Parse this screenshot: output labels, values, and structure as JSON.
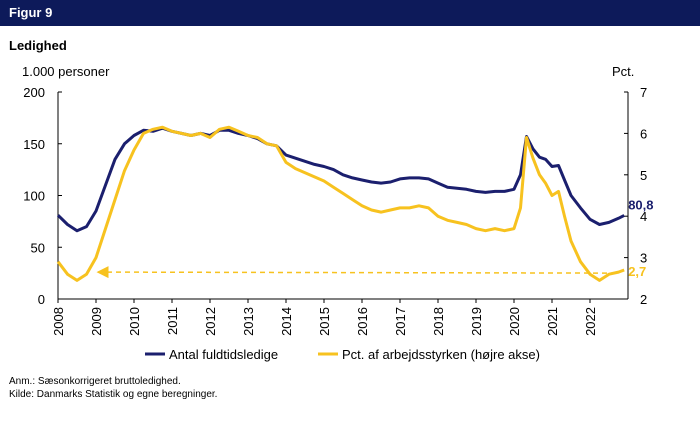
{
  "figure_label": "Figur 9",
  "title": "Ledighed",
  "notes": {
    "anm": "Anm.: Sæsonkorrigeret bruttoledighed.",
    "kilde": "Kilde: Danmarks Statistik og egne beregninger."
  },
  "colors": {
    "navy": "#1b1f6e",
    "yellow": "#f7c21f",
    "banner": "#0d1a5a"
  },
  "chart_data": {
    "type": "line",
    "left_axis": {
      "unit_label": "1.000 personer",
      "ylim": [
        0,
        200
      ],
      "ticks": [
        "0",
        "50",
        "100",
        "150",
        "200"
      ]
    },
    "right_axis": {
      "unit_label": "Pct.",
      "ylim": [
        2,
        7
      ],
      "ticks": [
        "2",
        "3",
        "4",
        "5",
        "6",
        "7"
      ]
    },
    "x_ticks": [
      "2008",
      "2009",
      "2010",
      "2011",
      "2012",
      "2013",
      "2014",
      "2015",
      "2016",
      "2017",
      "2018",
      "2019",
      "2020",
      "2021",
      "2022"
    ],
    "x_range": [
      2008,
      2023
    ],
    "grid": false,
    "legend_position": "bottom",
    "series": [
      {
        "name": "Antal fuldtidsledige",
        "axis": "left",
        "color": "#1b1f6e",
        "end_label": "80,8",
        "points": [
          [
            2008.0,
            81
          ],
          [
            2008.25,
            72
          ],
          [
            2008.5,
            66
          ],
          [
            2008.75,
            70
          ],
          [
            2009.0,
            85
          ],
          [
            2009.25,
            110
          ],
          [
            2009.5,
            135
          ],
          [
            2009.75,
            150
          ],
          [
            2010.0,
            158
          ],
          [
            2010.25,
            163
          ],
          [
            2010.5,
            162
          ],
          [
            2010.75,
            165
          ],
          [
            2011.0,
            162
          ],
          [
            2011.25,
            160
          ],
          [
            2011.5,
            158
          ],
          [
            2011.75,
            160
          ],
          [
            2012.0,
            158
          ],
          [
            2012.25,
            163
          ],
          [
            2012.5,
            163
          ],
          [
            2012.75,
            160
          ],
          [
            2013.0,
            158
          ],
          [
            2013.25,
            155
          ],
          [
            2013.5,
            150
          ],
          [
            2013.75,
            148
          ],
          [
            2014.0,
            139
          ],
          [
            2014.25,
            136
          ],
          [
            2014.5,
            133
          ],
          [
            2014.75,
            130
          ],
          [
            2015.0,
            128
          ],
          [
            2015.25,
            125
          ],
          [
            2015.5,
            120
          ],
          [
            2015.75,
            117
          ],
          [
            2016.0,
            115
          ],
          [
            2016.25,
            113
          ],
          [
            2016.5,
            112
          ],
          [
            2016.75,
            113
          ],
          [
            2017.0,
            116
          ],
          [
            2017.25,
            117
          ],
          [
            2017.5,
            117
          ],
          [
            2017.75,
            116
          ],
          [
            2018.0,
            112
          ],
          [
            2018.25,
            108
          ],
          [
            2018.5,
            107
          ],
          [
            2018.75,
            106
          ],
          [
            2019.0,
            104
          ],
          [
            2019.25,
            103
          ],
          [
            2019.5,
            104
          ],
          [
            2019.75,
            104
          ],
          [
            2020.0,
            106
          ],
          [
            2020.17,
            120
          ],
          [
            2020.33,
            157
          ],
          [
            2020.5,
            145
          ],
          [
            2020.67,
            137
          ],
          [
            2020.83,
            135
          ],
          [
            2021.0,
            128
          ],
          [
            2021.17,
            129
          ],
          [
            2021.33,
            115
          ],
          [
            2021.5,
            100
          ],
          [
            2021.75,
            88
          ],
          [
            2022.0,
            77
          ],
          [
            2022.25,
            72
          ],
          [
            2022.5,
            74
          ],
          [
            2022.75,
            78
          ],
          [
            2022.9,
            80.8
          ]
        ]
      },
      {
        "name": "Pct. af arbejdsstyrken (højre akse)",
        "axis": "right",
        "color": "#f7c21f",
        "end_label": "2,7",
        "points": [
          [
            2008.0,
            2.9
          ],
          [
            2008.25,
            2.6
          ],
          [
            2008.5,
            2.45
          ],
          [
            2008.75,
            2.6
          ],
          [
            2009.0,
            3.0
          ],
          [
            2009.25,
            3.7
          ],
          [
            2009.5,
            4.4
          ],
          [
            2009.75,
            5.1
          ],
          [
            2010.0,
            5.6
          ],
          [
            2010.25,
            6.0
          ],
          [
            2010.5,
            6.1
          ],
          [
            2010.75,
            6.15
          ],
          [
            2011.0,
            6.05
          ],
          [
            2011.25,
            6.0
          ],
          [
            2011.5,
            5.95
          ],
          [
            2011.75,
            6.0
          ],
          [
            2012.0,
            5.9
          ],
          [
            2012.25,
            6.1
          ],
          [
            2012.5,
            6.15
          ],
          [
            2012.75,
            6.05
          ],
          [
            2013.0,
            5.95
          ],
          [
            2013.25,
            5.9
          ],
          [
            2013.5,
            5.75
          ],
          [
            2013.75,
            5.7
          ],
          [
            2014.0,
            5.3
          ],
          [
            2014.25,
            5.15
          ],
          [
            2014.5,
            5.05
          ],
          [
            2014.75,
            4.95
          ],
          [
            2015.0,
            4.85
          ],
          [
            2015.25,
            4.7
          ],
          [
            2015.5,
            4.55
          ],
          [
            2015.75,
            4.4
          ],
          [
            2016.0,
            4.25
          ],
          [
            2016.25,
            4.15
          ],
          [
            2016.5,
            4.1
          ],
          [
            2016.75,
            4.15
          ],
          [
            2017.0,
            4.2
          ],
          [
            2017.25,
            4.2
          ],
          [
            2017.5,
            4.25
          ],
          [
            2017.75,
            4.2
          ],
          [
            2018.0,
            4.0
          ],
          [
            2018.25,
            3.9
          ],
          [
            2018.5,
            3.85
          ],
          [
            2018.75,
            3.8
          ],
          [
            2019.0,
            3.7
          ],
          [
            2019.25,
            3.65
          ],
          [
            2019.5,
            3.7
          ],
          [
            2019.75,
            3.65
          ],
          [
            2020.0,
            3.7
          ],
          [
            2020.17,
            4.2
          ],
          [
            2020.33,
            5.9
          ],
          [
            2020.5,
            5.4
          ],
          [
            2020.67,
            5.0
          ],
          [
            2020.83,
            4.8
          ],
          [
            2021.0,
            4.5
          ],
          [
            2021.17,
            4.6
          ],
          [
            2021.33,
            4.0
          ],
          [
            2021.5,
            3.4
          ],
          [
            2021.75,
            2.9
          ],
          [
            2022.0,
            2.6
          ],
          [
            2022.25,
            2.45
          ],
          [
            2022.5,
            2.6
          ],
          [
            2022.75,
            2.65
          ],
          [
            2022.9,
            2.7
          ]
        ]
      }
    ],
    "reference_line": {
      "style": "dashed",
      "color": "#f7c21f",
      "axis": "left",
      "y_start": 26,
      "y_end": 25,
      "x_start": 2009.0,
      "x_end": 2022.75,
      "arrowhead": "start"
    }
  }
}
